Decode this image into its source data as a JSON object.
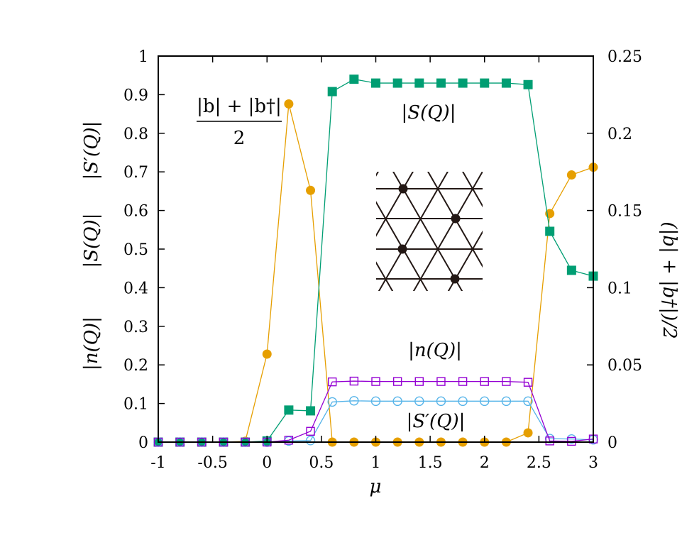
{
  "chart_data": {
    "type": "line",
    "title": "",
    "xlabel": "μ",
    "ylabel_left": [
      "|n(Q)|",
      "|S(Q)|",
      "|S′(Q)|"
    ],
    "ylabel_right": "(|b| + |b†|)/2",
    "xlim": [
      -1,
      3
    ],
    "ylim_left": [
      0,
      1
    ],
    "ylim_right": [
      0,
      0.25
    ],
    "x_ticks": [
      "-1",
      "-0.5",
      "0",
      "0.5",
      "1",
      "1.5",
      "2",
      "2.5",
      "3"
    ],
    "y_ticks_left": [
      "0",
      "0.1",
      "0.2",
      "0.3",
      "0.4",
      "0.5",
      "0.6",
      "0.7",
      "0.8",
      "0.9",
      "1"
    ],
    "y_ticks_right": [
      "0",
      "0.05",
      "0.1",
      "0.15",
      "0.2",
      "0.25"
    ],
    "grid": false,
    "x": [
      -1,
      -0.8,
      -0.6,
      -0.4,
      -0.2,
      0,
      0.2,
      0.4,
      0.6,
      0.8,
      1.0,
      1.2,
      1.4,
      1.6,
      1.8,
      2.0,
      2.2,
      2.4,
      2.6,
      2.8,
      3.0
    ],
    "series": [
      {
        "key": "S",
        "axis": "left",
        "color": "#009e73",
        "marker": "filled-square",
        "values": [
          0,
          0,
          0,
          0,
          0,
          0.003,
          0.083,
          0.081,
          0.908,
          0.94,
          0.93,
          0.93,
          0.93,
          0.93,
          0.93,
          0.93,
          0.93,
          0.926,
          0.546,
          0.445,
          0.43
        ]
      },
      {
        "key": "n",
        "axis": "left",
        "color": "#9400d3",
        "marker": "open-square",
        "values": [
          0,
          0,
          0,
          0,
          0,
          0,
          0.005,
          0.028,
          0.156,
          0.158,
          0.157,
          0.157,
          0.157,
          0.157,
          0.157,
          0.157,
          0.157,
          0.155,
          0.003,
          0.002,
          0.008
        ]
      },
      {
        "key": "Sp",
        "axis": "left",
        "color": "#56b4e9",
        "marker": "open-circle",
        "values": [
          0,
          0,
          0,
          0,
          0,
          0,
          0.003,
          0.004,
          0.104,
          0.107,
          0.106,
          0.106,
          0.106,
          0.106,
          0.106,
          0.106,
          0.106,
          0.106,
          0.009,
          0.008,
          0.006
        ]
      },
      {
        "key": "b",
        "axis": "right",
        "color": "#e69f00",
        "marker": "filled-circle",
        "values": [
          0,
          0,
          0,
          0,
          0.0005,
          0.057,
          0.219,
          0.163,
          0,
          0,
          0,
          0,
          0,
          0,
          0,
          0,
          0,
          0.006,
          0.148,
          0.173,
          0.178
        ]
      }
    ],
    "annotations": {
      "b_num": "|b| + |b†|",
      "b_den": "2",
      "S": "|S(Q)|",
      "n": "|n(Q)|",
      "Sp": "|S′(Q)|"
    }
  }
}
